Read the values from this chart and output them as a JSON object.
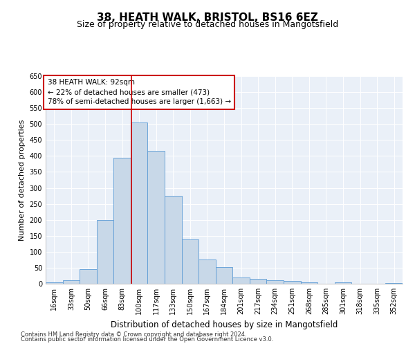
{
  "title1": "38, HEATH WALK, BRISTOL, BS16 6EZ",
  "title2": "Size of property relative to detached houses in Mangotsfield",
  "xlabel": "Distribution of detached houses by size in Mangotsfield",
  "ylabel": "Number of detached properties",
  "categories": [
    "16sqm",
    "33sqm",
    "50sqm",
    "66sqm",
    "83sqm",
    "100sqm",
    "117sqm",
    "133sqm",
    "150sqm",
    "167sqm",
    "184sqm",
    "201sqm",
    "217sqm",
    "234sqm",
    "251sqm",
    "268sqm",
    "285sqm",
    "301sqm",
    "318sqm",
    "335sqm",
    "352sqm"
  ],
  "values": [
    5,
    10,
    45,
    200,
    395,
    505,
    415,
    275,
    138,
    75,
    52,
    20,
    15,
    10,
    8,
    5,
    0,
    5,
    0,
    0,
    2
  ],
  "bar_color": "#c8d8e8",
  "bar_edge_color": "#5b9bd5",
  "vline_x": 4.53,
  "vline_color": "#cc0000",
  "ylim": [
    0,
    650
  ],
  "yticks": [
    0,
    50,
    100,
    150,
    200,
    250,
    300,
    350,
    400,
    450,
    500,
    550,
    600,
    650
  ],
  "annotation_text": "38 HEATH WALK: 92sqm\n← 22% of detached houses are smaller (473)\n78% of semi-detached houses are larger (1,663) →",
  "annotation_box_color": "#ffffff",
  "annotation_box_edge": "#cc0000",
  "footnote1": "Contains HM Land Registry data © Crown copyright and database right 2024.",
  "footnote2": "Contains public sector information licensed under the Open Government Licence v3.0.",
  "plot_bg": "#eaf0f8",
  "title1_fontsize": 11,
  "title2_fontsize": 9,
  "xlabel_fontsize": 8.5,
  "ylabel_fontsize": 8,
  "tick_fontsize": 7,
  "annotation_fontsize": 7.5,
  "footnote_fontsize": 6
}
